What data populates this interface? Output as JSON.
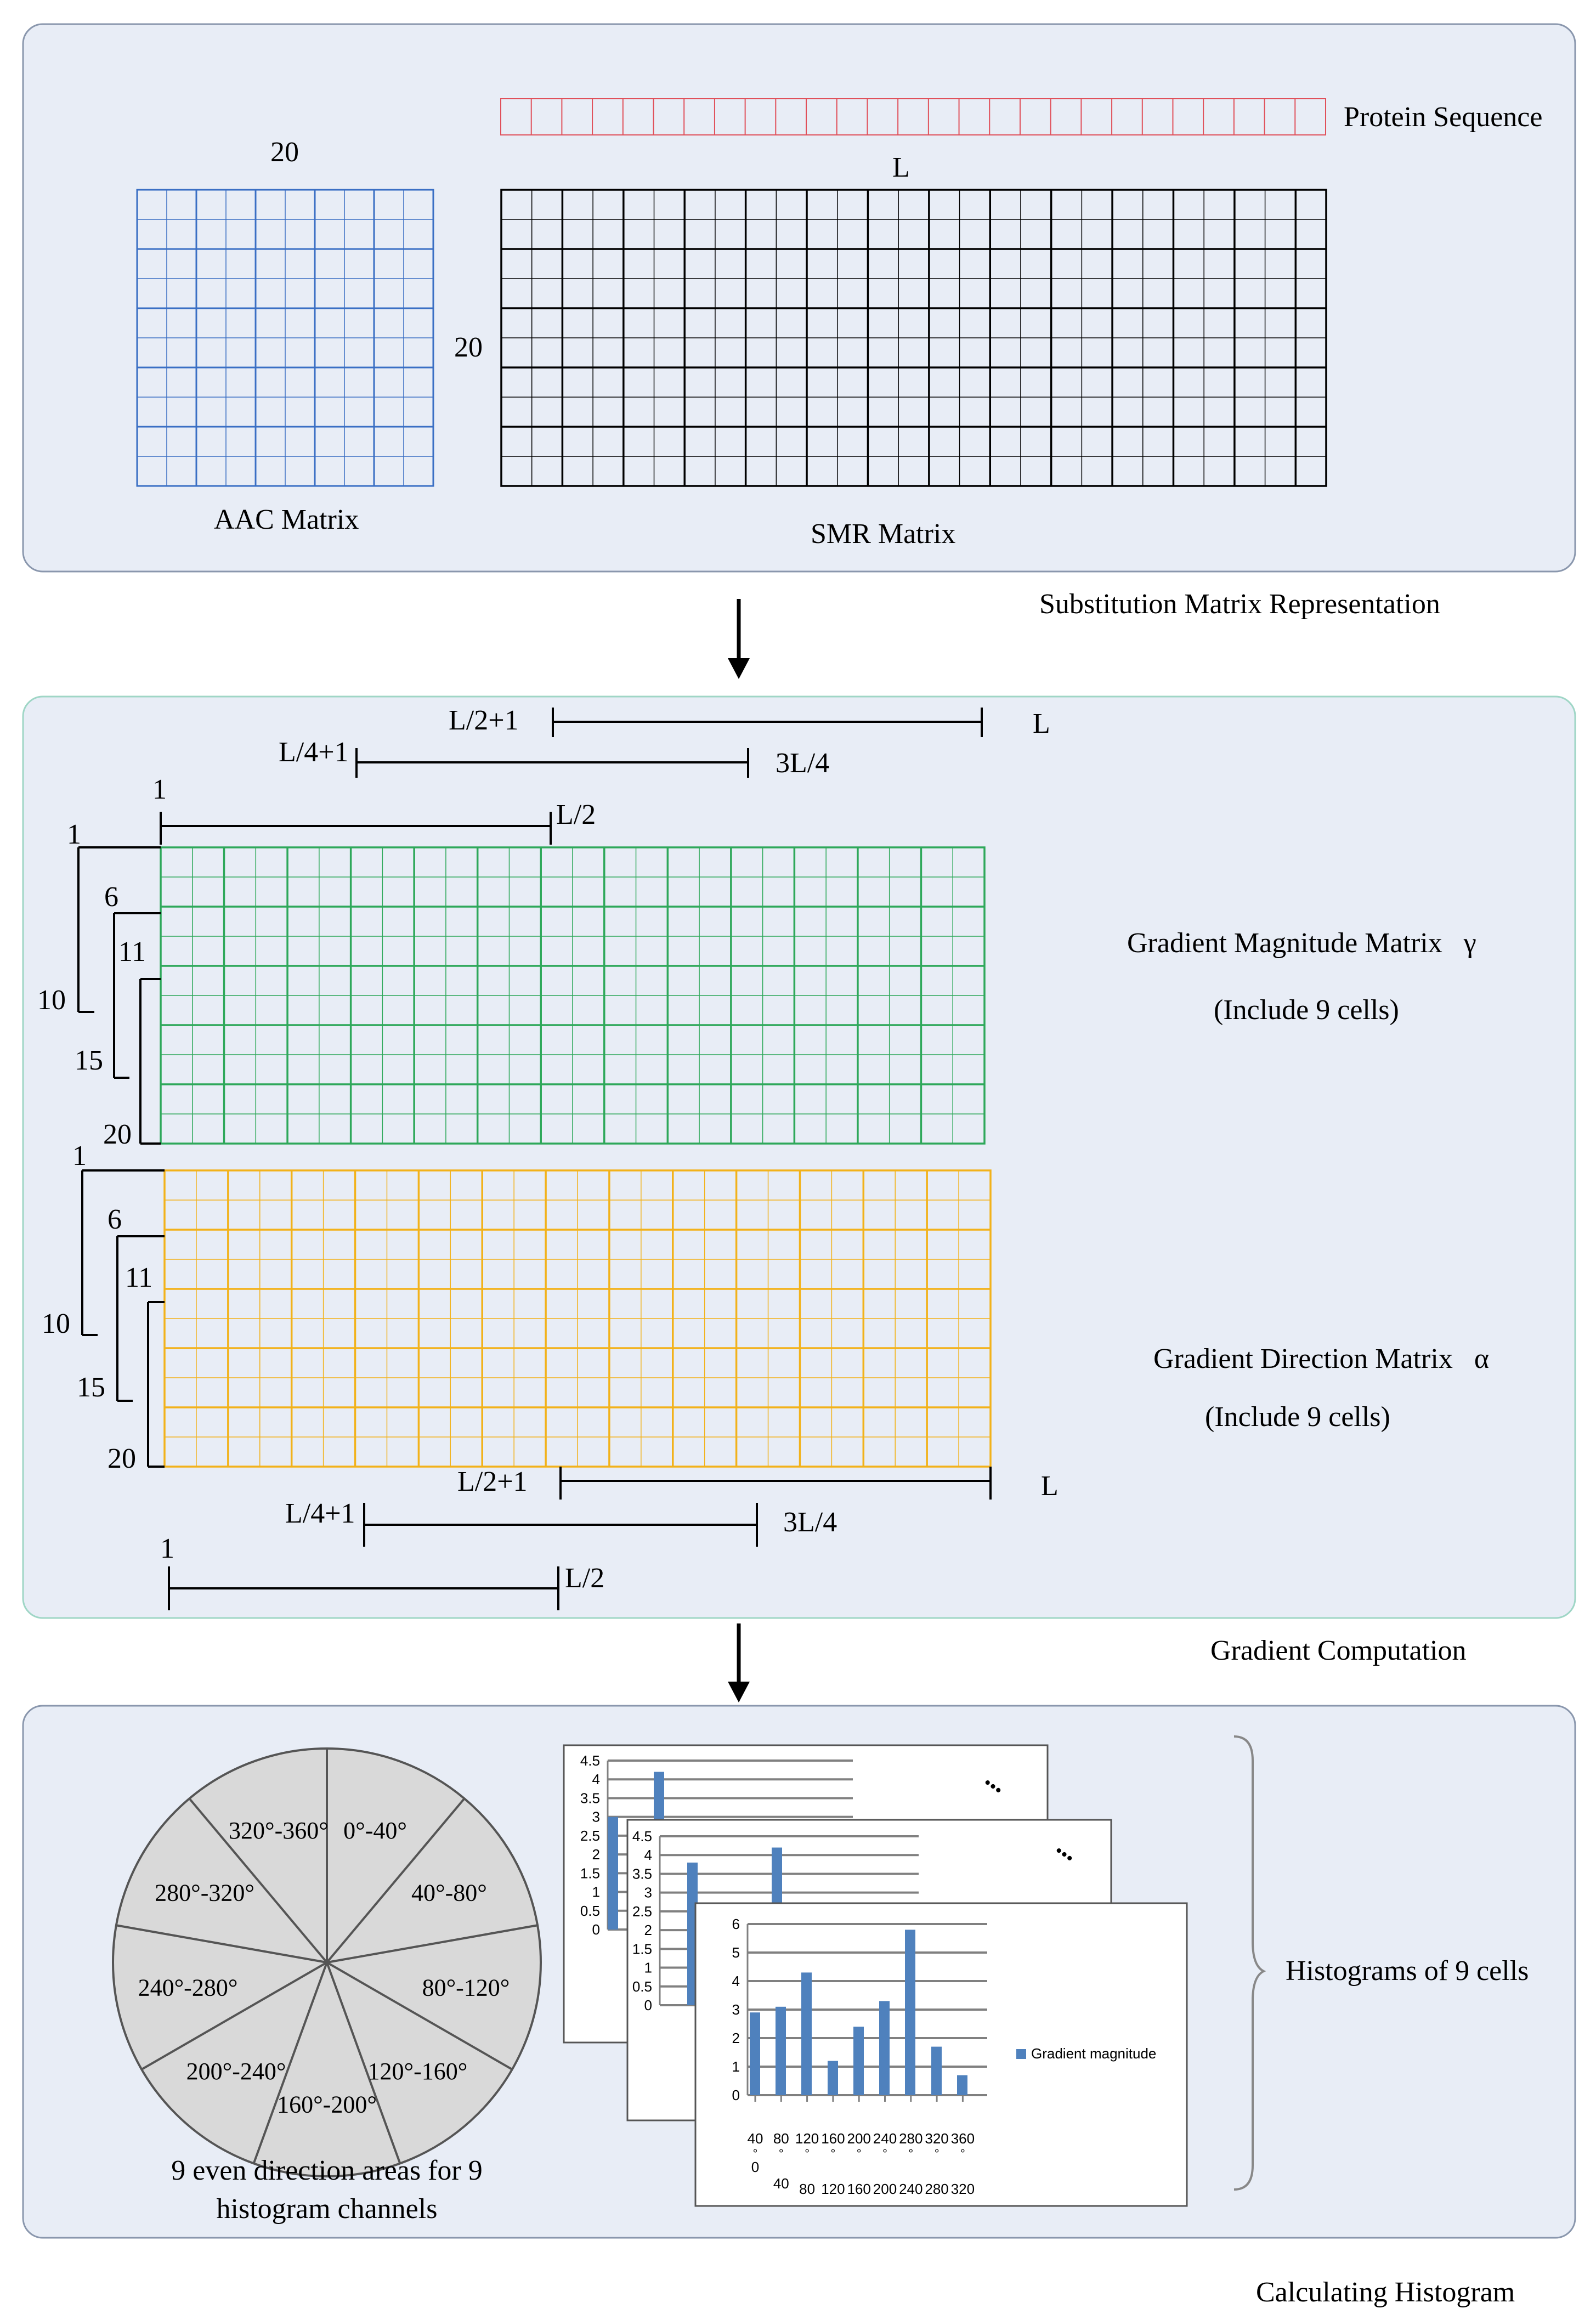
{
  "colors": {
    "panel_fill": "#e8edf6",
    "panel1_stroke": "#8a97ad",
    "panel2_stroke": "#9fd6c6",
    "panel3_stroke": "#8a97ad",
    "aac_grid": "#3a6fc4",
    "smr_grid": "#000000",
    "protein_seq": "#e0505a",
    "magnitude_grid": "#2ea85a",
    "direction_grid": "#f2b21a",
    "pie_fill": "#d9d9d9",
    "bar": "#4f81bd"
  },
  "section1": {
    "protein_sequence_label": "Protein Sequence",
    "aac_size_label": "20",
    "smr_length_label": "L",
    "smr_rows_label": "20",
    "aac_label": "AAC Matrix",
    "smr_label": "SMR Matrix",
    "step_label": "Substitution Matrix Representation"
  },
  "section2": {
    "top_ranges": {
      "r3_start": "L/2+1",
      "r3_end": "L",
      "r2_start": "L/4+1",
      "r2_end": "3L/4",
      "r1_start": "1",
      "r1_end": "L/2"
    },
    "magnitude_rows": {
      "r1_start": "1",
      "r1_end": "10",
      "r2_start": "6",
      "r2_end": "15",
      "r3_start": "11",
      "r3_end": "20"
    },
    "direction_rows": {
      "r1_start": "1",
      "r1_end": "10",
      "r2_start": "6",
      "r2_end": "15",
      "r3_start": "11",
      "r3_end": "20"
    },
    "bottom_ranges": {
      "r3_start": "L/2+1",
      "r3_end": "L",
      "r2_start": "L/4+1",
      "r2_end": "3L/4",
      "r1_start": "1",
      "r1_end": "L/2"
    },
    "magnitude_title": "Gradient Magnitude Matrix   γ",
    "magnitude_note": "(Include 9 cells)",
    "direction_title": "Gradient Direction Matrix   α",
    "direction_note": "(Include 9 cells)",
    "step_label": "Gradient Computation"
  },
  "section3": {
    "pie_sectors": [
      "0°-40°",
      "40°-80°",
      "80°-120°",
      "120°-160°",
      "160°-200°",
      "200°-240°",
      "240°-280°",
      "280°-320°",
      "320°-360°"
    ],
    "pie_caption_line1": "9 even direction areas for 9",
    "pie_caption_line2": "histogram channels",
    "histograms_label": "Histograms of 9 cells",
    "step_label": "Calculating Histogram",
    "ellipsis_1": "•••",
    "ellipsis_2": "•••"
  },
  "chart_data": [
    {
      "type": "bar",
      "title": "",
      "series": [
        {
          "name": "Gradient magnitude",
          "values": [
            2.9,
            3.1,
            4.3,
            1.2,
            2.4,
            3.3,
            5.8,
            1.7,
            0.7
          ]
        }
      ],
      "categories": [
        "0°-40°",
        "40°-80°",
        "80°-120°",
        "120°-160°",
        "160°-200°",
        "200°-240°",
        "240°-280°",
        "280°-320°",
        "320°-360°"
      ],
      "category_top_labels": [
        "40",
        "80",
        "120",
        "160",
        "200",
        "240",
        "280",
        "320",
        "360"
      ],
      "category_mid_labels": [
        "°",
        "°",
        "°",
        "°",
        "°",
        "°",
        "°",
        "°",
        "°"
      ],
      "category_bottom_labels": [
        "0",
        "40",
        "80",
        "120",
        "160",
        "200",
        "240",
        "280",
        "320"
      ],
      "legend": "Gradient magnitude",
      "legend_position": "right",
      "ylim": [
        0,
        6
      ],
      "yticks": [
        "0",
        "1",
        "2",
        "3",
        "4",
        "5",
        "6"
      ]
    },
    {
      "type": "bar",
      "title": "",
      "series": [
        {
          "name": "Gradient magnitude",
          "values": [
            3.8,
            null,
            4.2
          ]
        }
      ],
      "ylim": [
        0,
        4.5
      ],
      "yticks": [
        "0",
        "0.5",
        "1",
        "1.5",
        "2",
        "2.5",
        "3",
        "3.5",
        "4",
        "4.5"
      ]
    },
    {
      "type": "bar",
      "title": "",
      "series": [
        {
          "name": "Gradient magnitude",
          "values": [
            3.0,
            4.2
          ]
        }
      ],
      "ylim": [
        0,
        4.5
      ],
      "yticks": [
        "0",
        "0.5",
        "1",
        "1.5",
        "2",
        "2.5",
        "3",
        "3.5",
        "4",
        "4.5"
      ]
    }
  ]
}
